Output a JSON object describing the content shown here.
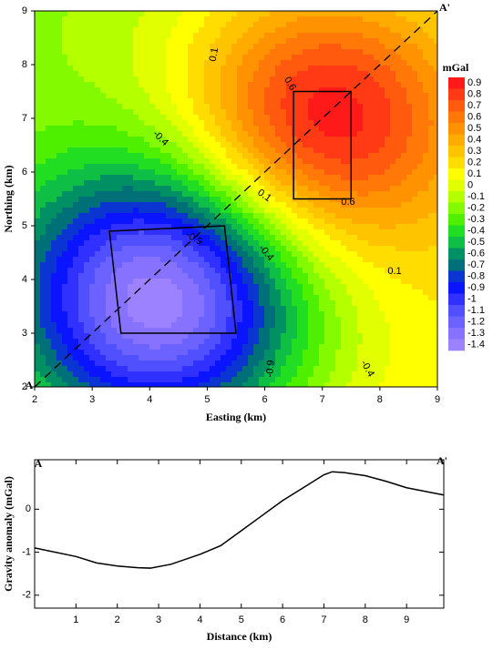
{
  "chart_data": [
    {
      "type": "contour",
      "xlabel": "Easting (km)",
      "ylabel": "Northing (km)",
      "xlim": [
        2,
        9
      ],
      "ylim": [
        2,
        9
      ],
      "xticks": [
        2,
        3,
        4,
        5,
        6,
        7,
        8,
        9
      ],
      "yticks": [
        2,
        3,
        4,
        5,
        6,
        7,
        8,
        9
      ],
      "profile_labels": [
        "A",
        "A'"
      ],
      "contour_labels": [
        "0.1",
        "0.6",
        "-0.4",
        "0.1",
        "0.6",
        "-0.9",
        "-0.4",
        "0.1",
        "-0.9",
        "-0.4"
      ],
      "colorbar": {
        "title": "mGal",
        "levels": [
          0.9,
          0.8,
          0.7,
          0.6,
          0.5,
          0.4,
          0.3,
          0.2,
          0.1,
          0,
          -0.1,
          -0.2,
          -0.3,
          -0.4,
          -0.5,
          -0.6,
          -0.7,
          -0.8,
          -0.9,
          -1,
          -1.1,
          -1.2,
          -1.3,
          -1.4
        ],
        "colors": [
          "#ff1a1a",
          "#ff3a14",
          "#ff5a0e",
          "#ff7808",
          "#ff9200",
          "#ffab00",
          "#ffc400",
          "#ffdd00",
          "#ffff00",
          "#e2ff00",
          "#b4ff00",
          "#84fa00",
          "#4ef000",
          "#22de22",
          "#0fbf45",
          "#009064",
          "#007078",
          "#0a35d0",
          "#0a14ff",
          "#3030ff",
          "#5050ff",
          "#6c62ff",
          "#8672ff",
          "#9c82ff"
        ]
      }
    },
    {
      "type": "line",
      "xlabel": "Distance (km)",
      "ylabel": "Gravity anomaly (mGal)",
      "profile_labels": [
        "A",
        "A'"
      ],
      "xlim": [
        0,
        9.9
      ],
      "ylim": [
        -2.3,
        1.15
      ],
      "xticks": [
        1,
        2,
        3,
        4,
        5,
        6,
        7,
        8,
        9
      ],
      "yticks": [
        -2,
        -1,
        0
      ],
      "color": "#000000",
      "x": [
        0,
        1,
        1.5,
        2,
        2.5,
        2.8,
        3.3,
        4,
        4.5,
        5,
        5.5,
        6,
        6.5,
        7,
        7.2,
        7.5,
        8,
        8.5,
        9,
        9.9
      ],
      "values": [
        -0.9,
        -1.1,
        -1.25,
        -1.32,
        -1.36,
        -1.37,
        -1.28,
        -1.05,
        -0.85,
        -0.5,
        -0.15,
        0.2,
        0.5,
        0.8,
        0.87,
        0.85,
        0.78,
        0.65,
        0.5,
        0.33
      ]
    }
  ]
}
